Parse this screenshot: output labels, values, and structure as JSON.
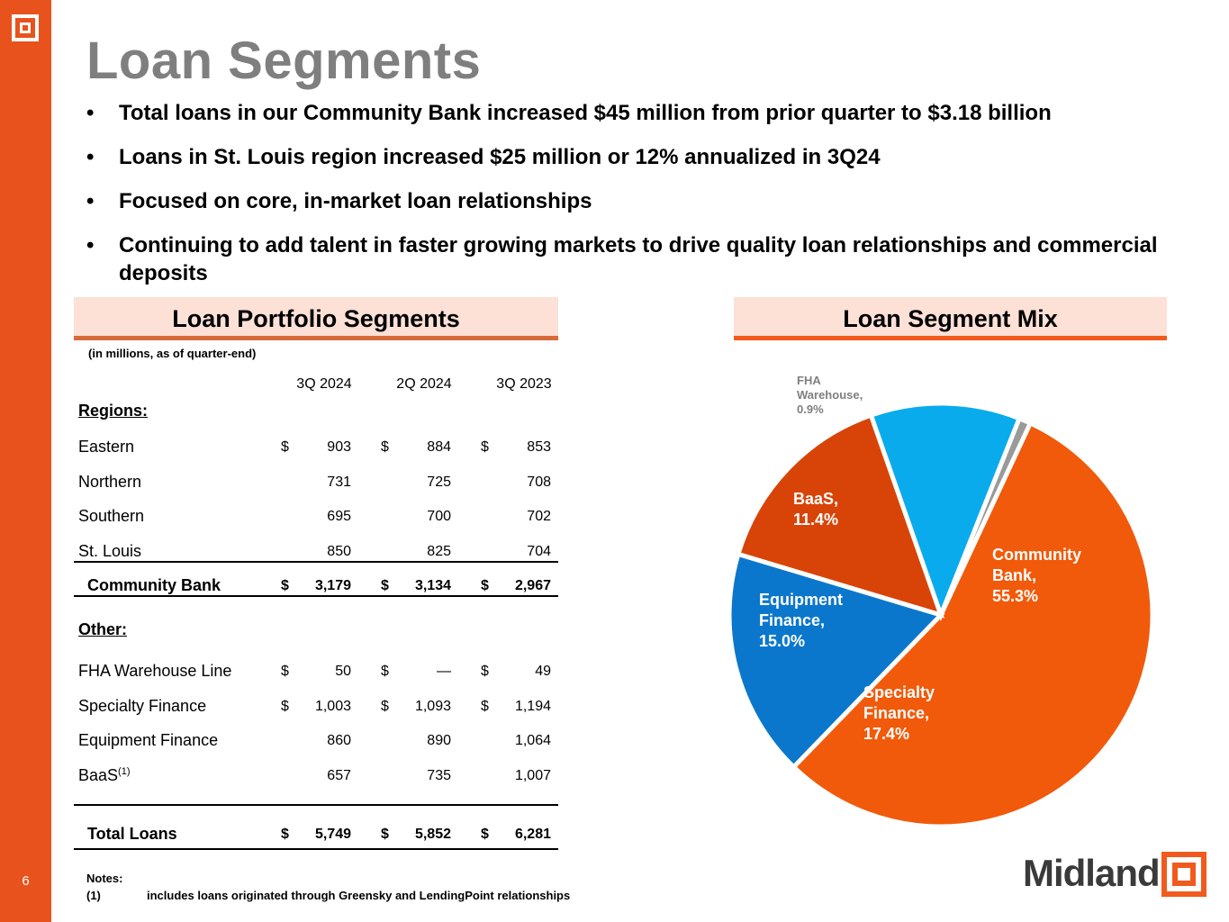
{
  "page": {
    "number": "6",
    "title": "Loan Segments"
  },
  "bullets": [
    "Total loans in our Community Bank increased $45 million from prior quarter to $3.18 billion",
    "Loans in St. Louis region increased $25 million or 12% annualized in 3Q24",
    "Focused on core, in-market loan relationships",
    "Continuing to add talent in faster growing markets to drive quality loan relationships and commercial deposits"
  ],
  "table": {
    "heading": "Loan Portfolio Segments",
    "units_note": "(in millions, as of quarter-end)",
    "columns": [
      "3Q 2024",
      "2Q 2024",
      "3Q 2023"
    ],
    "regions_label": "Regions:",
    "regions": [
      {
        "label": "Eastern",
        "cur": "$",
        "v": [
          "903",
          "884",
          "853"
        ]
      },
      {
        "label": "Northern",
        "cur": "",
        "v": [
          "731",
          "725",
          "708"
        ]
      },
      {
        "label": "Southern",
        "cur": "",
        "v": [
          "695",
          "700",
          "702"
        ]
      },
      {
        "label": "St. Louis",
        "cur": "",
        "v": [
          "850",
          "825",
          "704"
        ]
      }
    ],
    "community": {
      "label": "Community Bank",
      "cur": "$",
      "v": [
        "3,179",
        "3,134",
        "2,967"
      ]
    },
    "other_label": "Other:",
    "other": [
      {
        "label": "FHA Warehouse Line",
        "cur": "$",
        "v": [
          "50",
          "—",
          "49"
        ]
      },
      {
        "label": "Specialty Finance",
        "cur": "$",
        "v": [
          "1,003",
          "1,093",
          "1,194"
        ]
      },
      {
        "label": "Equipment Finance",
        "cur": "",
        "v": [
          "860",
          "890",
          "1,064"
        ]
      },
      {
        "label": "BaaS",
        "sup": "(1)",
        "cur": "",
        "v": [
          "657",
          "735",
          "1,007"
        ]
      }
    ],
    "total": {
      "label": "Total Loans",
      "cur": "$",
      "v": [
        "5,749",
        "5,852",
        "6,281"
      ]
    }
  },
  "notes": {
    "title": "Notes:",
    "marker": "(1)",
    "text": "includes loans originated through Greensky and LendingPoint relationships"
  },
  "chart_data": {
    "type": "pie",
    "title": "Loan Segment Mix",
    "slices": [
      {
        "label": "Community Bank",
        "value": 55.3,
        "display": [
          "Community",
          "Bank,",
          "55.3%"
        ],
        "color": "#f15a0a",
        "text_color": "#ffffff"
      },
      {
        "label": "Specialty Finance",
        "value": 17.4,
        "display": [
          "Specialty",
          "Finance,",
          "17.4%"
        ],
        "color": "#0b77cc",
        "text_color": "#ffffff"
      },
      {
        "label": "Equipment Finance",
        "value": 15.0,
        "display": [
          "Equipment",
          "Finance,",
          "15.0%"
        ],
        "color": "#d84408",
        "text_color": "#ffffff"
      },
      {
        "label": "BaaS",
        "value": 11.4,
        "display": [
          "BaaS,",
          "11.4%"
        ],
        "color": "#0aabec",
        "text_color": "#ffffff"
      },
      {
        "label": "FHA Warehouse",
        "value": 0.9,
        "display": [
          "FHA",
          "Warehouse,",
          "0.9%"
        ],
        "color": "#9a9a9a",
        "text_color": "#7f7f7f"
      }
    ]
  },
  "brand": {
    "name": "Midland",
    "accent": "#e8531d"
  }
}
